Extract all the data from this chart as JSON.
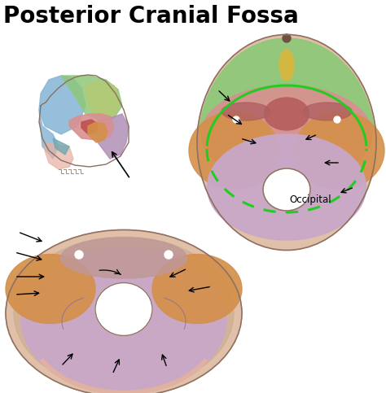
{
  "title": "Posterior Cranial Fossa",
  "title_fontsize": 20,
  "title_fontweight": "bold",
  "background_color": "#ffffff",
  "occipital_label": "Occipital",
  "colors": {
    "green_frontal": "#8fc87a",
    "blue_parietal": "#8ab8d8",
    "pink_temporal": "#d89090",
    "red_sphenoid": "#c05050",
    "orange_temporal": "#d4904a",
    "yellow_green": "#b8c870",
    "purple_occipital": "#b090b8",
    "lavender": "#c8a8c8",
    "skin": "#e0c0a8",
    "skin_dark": "#c8a888",
    "bright_green": "#22cc22",
    "gold": "#d4b840",
    "pink_light": "#e8b0a0",
    "mauve": "#c09898"
  }
}
